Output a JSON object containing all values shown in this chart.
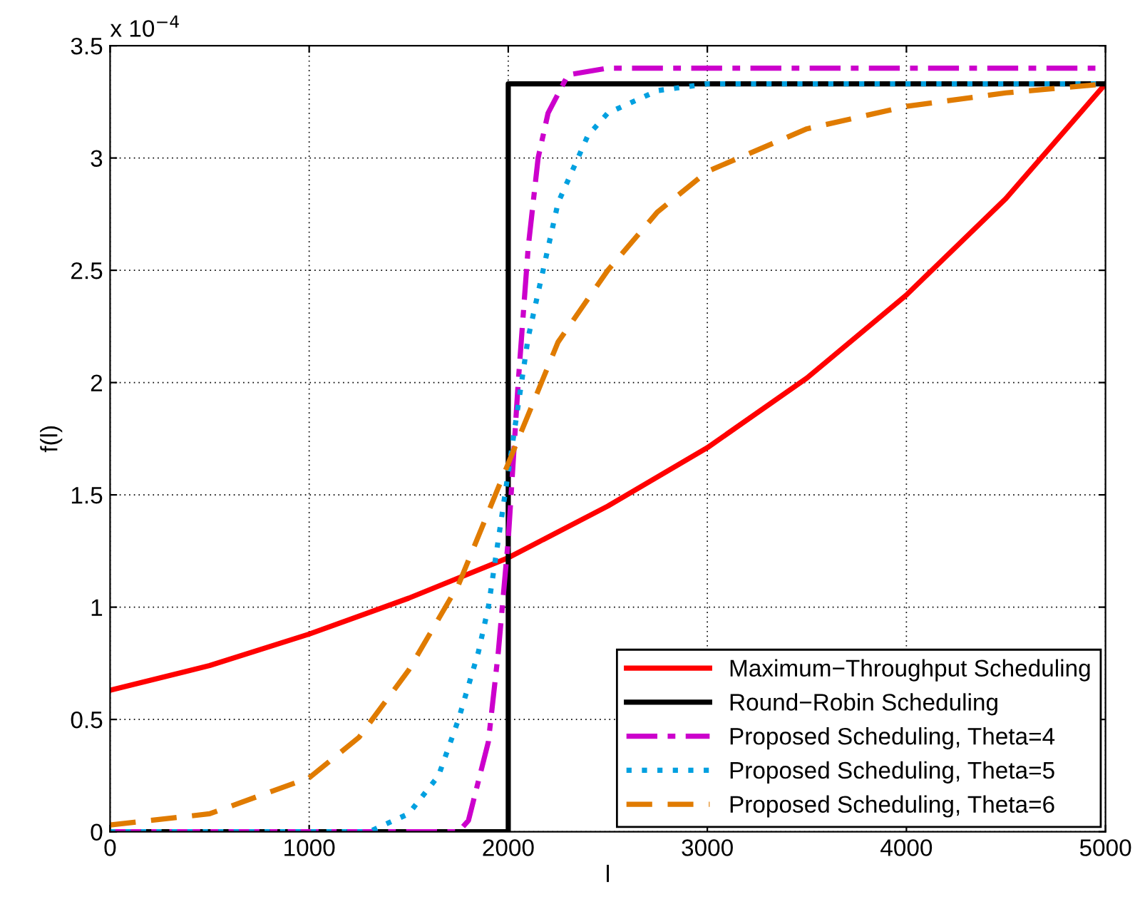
{
  "chart_data": {
    "type": "line",
    "xlabel": "l",
    "ylabel": "f(l)",
    "annotations": [
      "x 10$^{−4}$"
    ],
    "xlim": [
      0,
      5000
    ],
    "xticks": [
      0,
      1000,
      2000,
      3000,
      4000,
      5000
    ],
    "ylim": [
      0,
      3.5
    ],
    "yticks": [
      0,
      0.5,
      1,
      1.5,
      2,
      2.5,
      3,
      3.5
    ],
    "grid": true,
    "legend": "bottom right",
    "marker": "none",
    "series": [
      {
        "name": "Maximum−Throughput Scheduling",
        "color": "#ff0000",
        "line_style": "solid",
        "x": [
          0,
          500,
          1000,
          1500,
          2000,
          2500,
          3000,
          3500,
          4000,
          4500,
          5000
        ],
        "values": [
          0.63,
          0.74,
          0.88,
          1.04,
          1.22,
          1.45,
          1.71,
          2.02,
          2.39,
          2.82,
          3.33
        ]
      },
      {
        "name": "Round−Robin Scheduling",
        "color": "#000000",
        "line_style": "solid",
        "x": [
          0,
          2000,
          2000,
          5000
        ],
        "values": [
          0,
          0,
          3.33,
          3.33
        ]
      },
      {
        "name": "Proposed Scheduling, Theta=4",
        "color": "#cc00cc",
        "line_style": "dashdot",
        "x": [
          0,
          1750,
          1800,
          1900,
          1950,
          2000,
          2050,
          2100,
          2150,
          2200,
          2300,
          2500,
          5000
        ],
        "values": [
          0,
          0,
          0.05,
          0.4,
          0.8,
          1.3,
          2.0,
          2.6,
          3.0,
          3.2,
          3.37,
          3.4,
          3.4
        ]
      },
      {
        "name": "Proposed Scheduling, Theta=5",
        "color": "#00a0e0",
        "line_style": "dotted",
        "x": [
          0,
          1300,
          1500,
          1650,
          1750,
          1850,
          1900,
          2000,
          2100,
          2250,
          2400,
          2500,
          2750,
          3000,
          5000
        ],
        "values": [
          0,
          0,
          0.08,
          0.25,
          0.5,
          0.8,
          1.0,
          1.6,
          2.2,
          2.8,
          3.1,
          3.2,
          3.3,
          3.33,
          3.33
        ]
      },
      {
        "name": "Proposed Scheduling, Theta=6",
        "color": "#e07b00",
        "line_style": "dashed",
        "x": [
          0,
          500,
          1000,
          1250,
          1500,
          1750,
          2000,
          2250,
          2500,
          2750,
          3000,
          3500,
          4000,
          4500,
          5000
        ],
        "values": [
          0.03,
          0.08,
          0.24,
          0.42,
          0.72,
          1.1,
          1.64,
          2.18,
          2.5,
          2.76,
          2.94,
          3.13,
          3.23,
          3.29,
          3.33
        ]
      }
    ]
  }
}
